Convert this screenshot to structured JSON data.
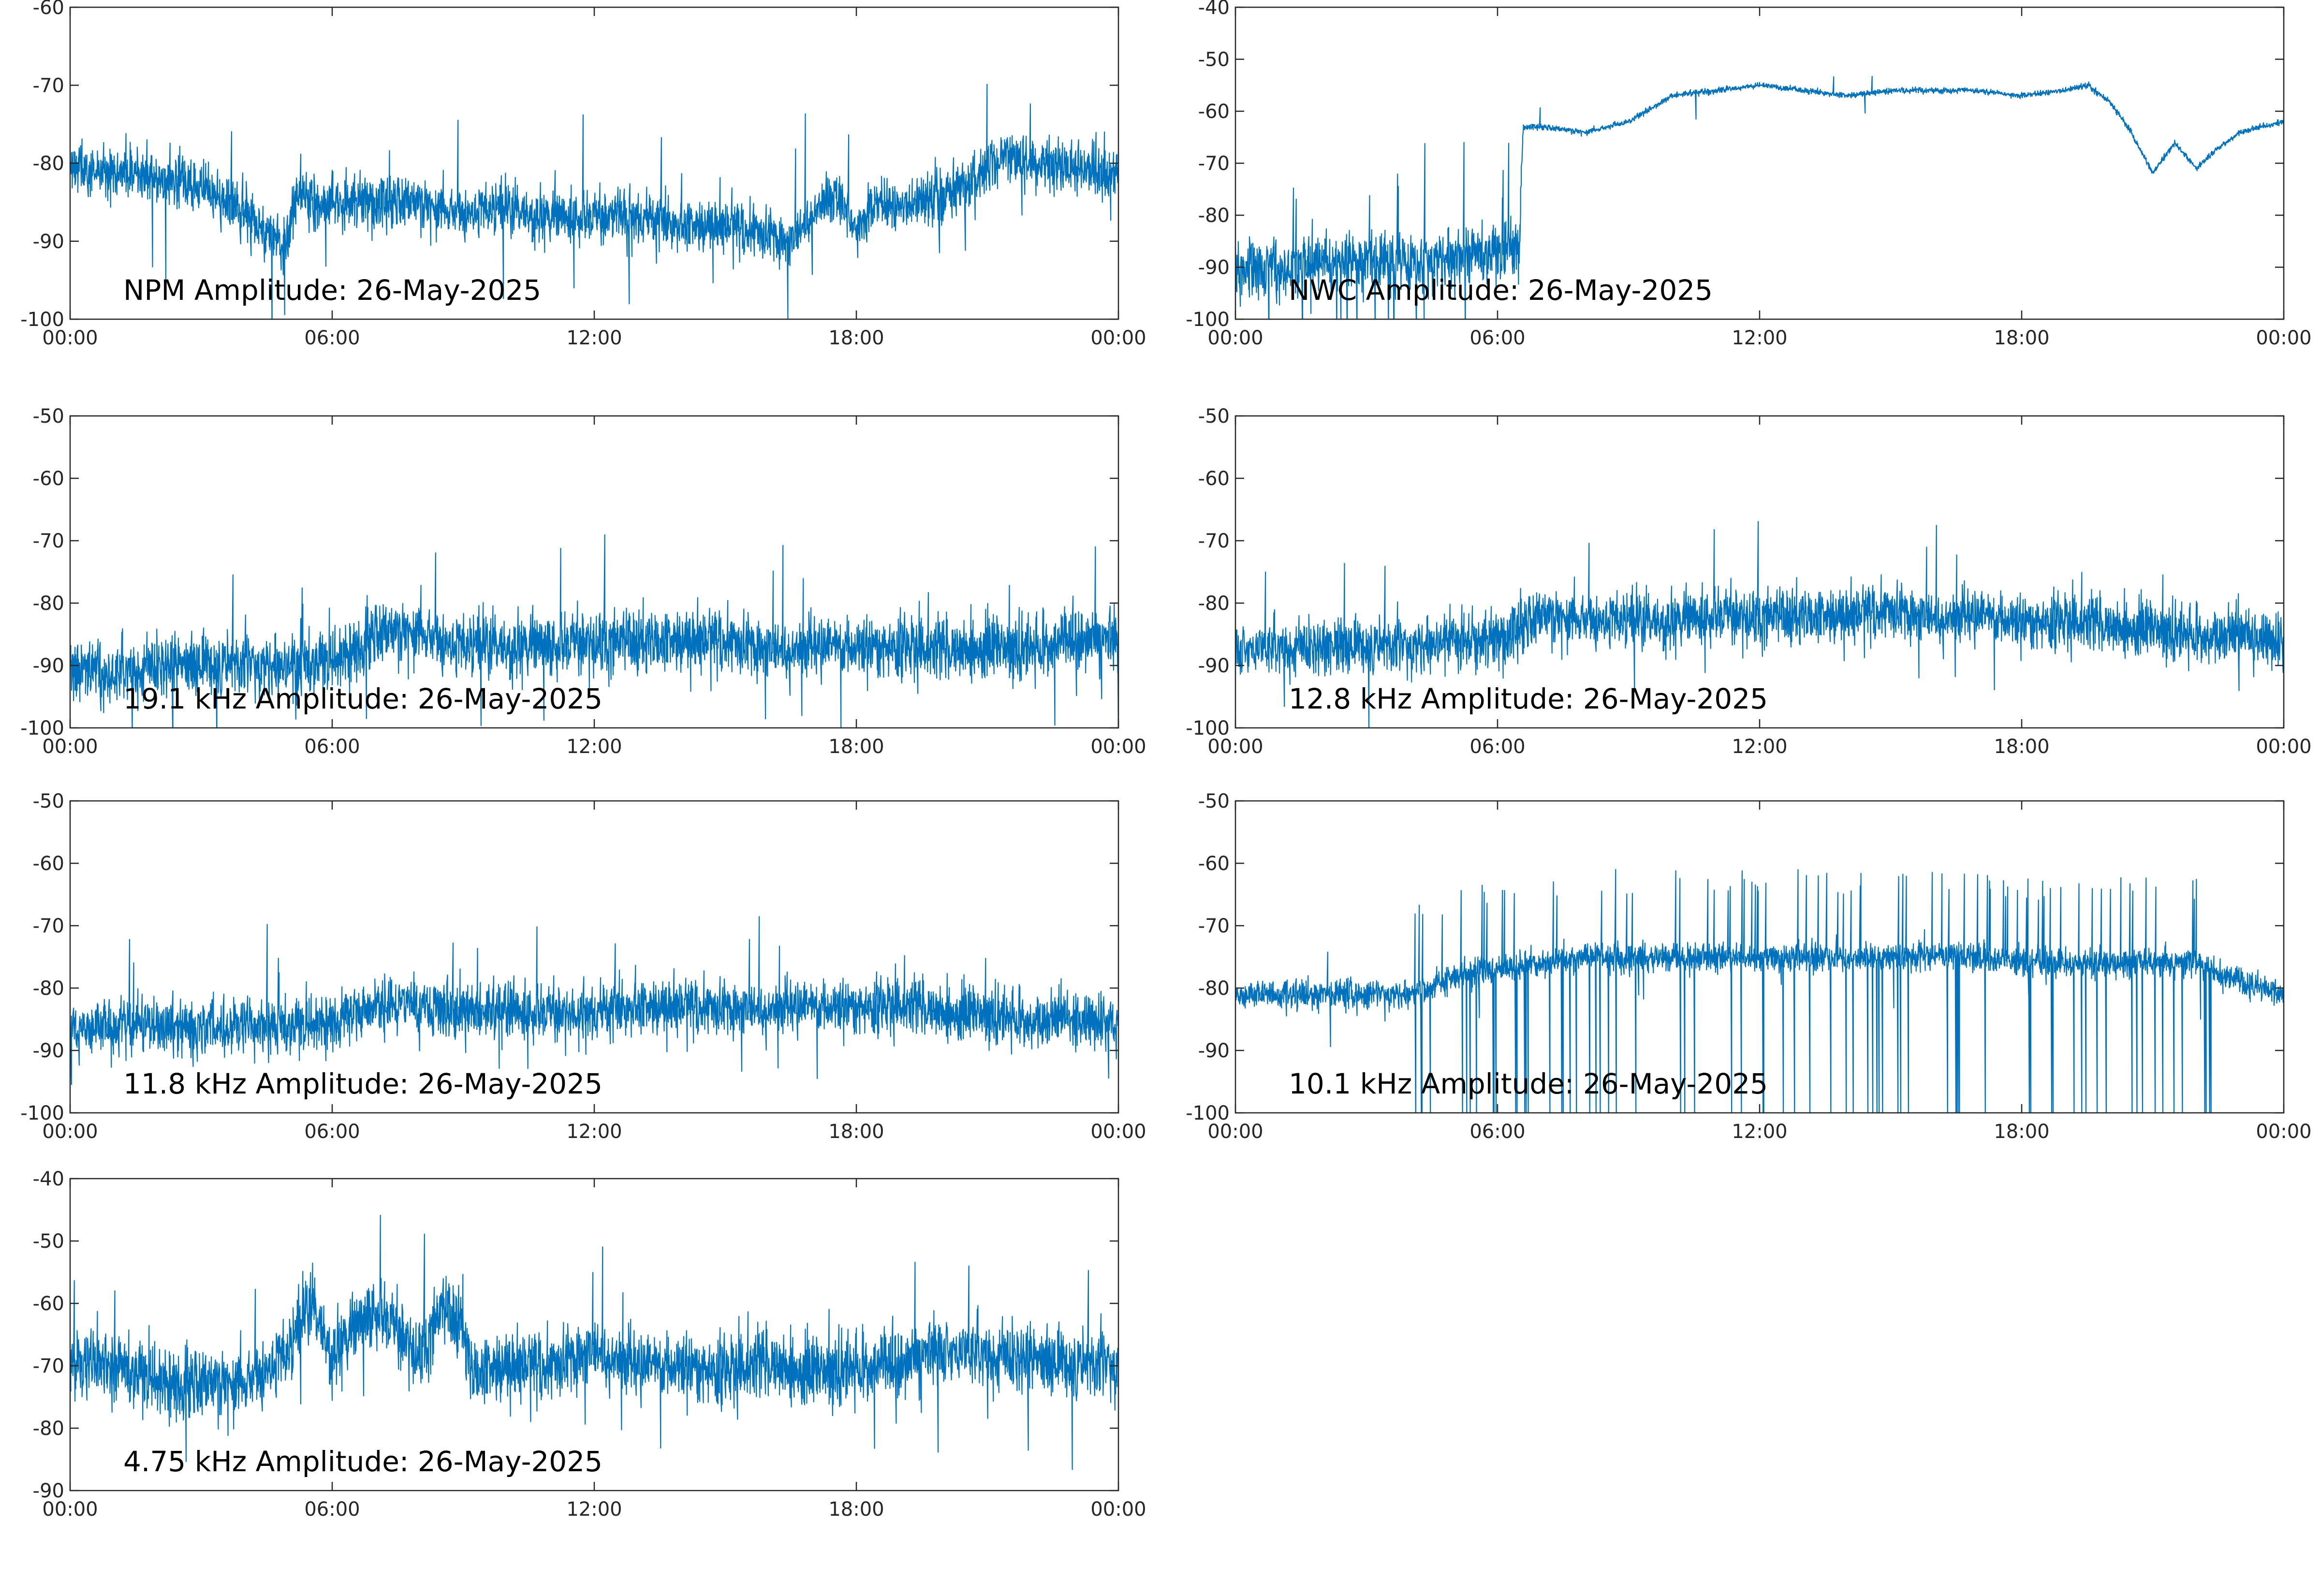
{
  "figure": {
    "line_color": "#0072BD",
    "x_tick_labels": [
      "00:00",
      "06:00",
      "12:00",
      "18:00",
      "00:00"
    ]
  },
  "chart_data": [
    {
      "type": "line",
      "title": "NPM Amplitude: 26-May-2025",
      "xlabel": "",
      "ylabel": "",
      "xlim": [
        "00:00",
        "00:00"
      ],
      "ylim": [
        -100,
        -60
      ],
      "y_ticks": [
        -60,
        -70,
        -80,
        -90,
        -100
      ],
      "grid": false,
      "series": [
        {
          "x": [
            "00:00",
            "01:00",
            "02:00",
            "03:00",
            "04:00",
            "04:30",
            "05:00",
            "05:10",
            "06:00",
            "07:00",
            "08:00",
            "09:00",
            "10:00",
            "11:00",
            "12:00",
            "13:00",
            "14:00",
            "15:00",
            "16:00",
            "16:30",
            "17:00",
            "17:30",
            "18:00",
            "18:30",
            "19:00",
            "20:00",
            "21:00",
            "21:30",
            "22:00",
            "23:00",
            "24:00"
          ],
          "values": [
            -81,
            -81,
            -82,
            -83,
            -86,
            -89,
            -90,
            -84,
            -85,
            -85,
            -85,
            -86,
            -86,
            -87,
            -87,
            -87,
            -88,
            -88,
            -89,
            -90,
            -86,
            -84,
            -88,
            -85,
            -86,
            -84,
            -81,
            -79,
            -80,
            -81,
            -81
          ]
        }
      ]
    },
    {
      "type": "line",
      "title": "NWC Amplitude: 26-May-2025",
      "xlabel": "",
      "ylabel": "",
      "xlim": [
        "00:00",
        "00:00"
      ],
      "ylim": [
        -100,
        -40
      ],
      "y_ticks": [
        -40,
        -50,
        -60,
        -70,
        -80,
        -90,
        -100
      ],
      "grid": false,
      "series": [
        {
          "x": [
            "00:00",
            "01:00",
            "02:00",
            "03:00",
            "04:00",
            "05:00",
            "06:00",
            "06:30",
            "06:35",
            "07:00",
            "08:00",
            "09:00",
            "10:00",
            "11:00",
            "12:00",
            "13:00",
            "14:00",
            "15:00",
            "16:00",
            "17:00",
            "18:00",
            "19:00",
            "19:30",
            "20:00",
            "20:30",
            "21:00",
            "21:30",
            "22:00",
            "22:30",
            "23:00",
            "24:00"
          ],
          "values": [
            -90,
            -90,
            -89,
            -89,
            -89,
            -88,
            -87,
            -87,
            -63,
            -63,
            -64,
            -62,
            -57,
            -56,
            -55,
            -56,
            -57,
            -56,
            -56,
            -56,
            -57,
            -56,
            -55,
            -58,
            -64,
            -72,
            -66,
            -71,
            -67,
            -64,
            -62
          ]
        }
      ]
    },
    {
      "type": "line",
      "title": "19.1 kHz Amplitude: 26-May-2025",
      "xlabel": "",
      "ylabel": "",
      "xlim": [
        "00:00",
        "00:00"
      ],
      "ylim": [
        -100,
        -50
      ],
      "y_ticks": [
        -50,
        -60,
        -70,
        -80,
        -90,
        -100
      ],
      "grid": false,
      "series": [
        {
          "x": [
            "00:00",
            "01:00",
            "02:00",
            "03:00",
            "04:00",
            "05:00",
            "06:00",
            "07:00",
            "08:00",
            "09:00",
            "10:00",
            "11:00",
            "12:00",
            "13:00",
            "14:00",
            "15:00",
            "16:00",
            "17:00",
            "18:00",
            "19:00",
            "20:00",
            "21:00",
            "22:00",
            "23:00",
            "24:00"
          ],
          "values": [
            -91,
            -91,
            -90,
            -90,
            -90,
            -90,
            -89,
            -85,
            -84,
            -87,
            -87,
            -87,
            -86,
            -86,
            -86,
            -86,
            -87,
            -87,
            -87,
            -87,
            -88,
            -87,
            -87,
            -86,
            -86
          ]
        }
      ]
    },
    {
      "type": "line",
      "title": "12.8 kHz Amplitude: 26-May-2025",
      "xlabel": "",
      "ylabel": "",
      "xlim": [
        "00:00",
        "00:00"
      ],
      "ylim": [
        -100,
        -50
      ],
      "y_ticks": [
        -50,
        -60,
        -70,
        -80,
        -90,
        -100
      ],
      "grid": false,
      "series": [
        {
          "x": [
            "00:00",
            "01:00",
            "02:00",
            "03:00",
            "04:00",
            "05:00",
            "06:00",
            "07:00",
            "08:00",
            "09:00",
            "10:00",
            "11:00",
            "12:00",
            "13:00",
            "14:00",
            "15:00",
            "16:00",
            "17:00",
            "18:00",
            "19:00",
            "20:00",
            "21:00",
            "22:00",
            "23:00",
            "24:00"
          ],
          "values": [
            -87,
            -87,
            -87,
            -87,
            -87,
            -86,
            -86,
            -82,
            -82,
            -83,
            -83,
            -82,
            -82,
            -82,
            -82,
            -81,
            -82,
            -82,
            -83,
            -83,
            -84,
            -84,
            -85,
            -85,
            -86
          ]
        }
      ]
    },
    {
      "type": "line",
      "title": "11.8 kHz Amplitude: 26-May-2025",
      "xlabel": "",
      "ylabel": "",
      "xlim": [
        "00:00",
        "00:00"
      ],
      "ylim": [
        -100,
        -50
      ],
      "y_ticks": [
        -50,
        -60,
        -70,
        -80,
        -90,
        -100
      ],
      "grid": false,
      "series": [
        {
          "x": [
            "00:00",
            "01:00",
            "02:00",
            "03:00",
            "04:00",
            "05:00",
            "06:00",
            "07:00",
            "08:00",
            "09:00",
            "10:00",
            "11:00",
            "12:00",
            "13:00",
            "14:00",
            "15:00",
            "16:00",
            "17:00",
            "18:00",
            "19:00",
            "20:00",
            "21:00",
            "22:00",
            "23:00",
            "24:00"
          ],
          "values": [
            -86,
            -86,
            -86,
            -86,
            -86,
            -86,
            -85,
            -83,
            -83,
            -84,
            -84,
            -84,
            -84,
            -83,
            -83,
            -83,
            -83,
            -83,
            -83,
            -83,
            -84,
            -84,
            -85,
            -85,
            -85
          ]
        }
      ]
    },
    {
      "type": "line",
      "title": "10.1 kHz Amplitude: 26-May-2025",
      "xlabel": "",
      "ylabel": "",
      "xlim": [
        "00:00",
        "00:00"
      ],
      "ylim": [
        -100,
        -50
      ],
      "y_ticks": [
        -50,
        -60,
        -70,
        -80,
        -90,
        -100
      ],
      "grid": false,
      "series": [
        {
          "x": [
            "00:00",
            "01:00",
            "02:00",
            "03:00",
            "04:00",
            "05:00",
            "06:00",
            "07:00",
            "08:00",
            "09:00",
            "10:00",
            "11:00",
            "12:00",
            "13:00",
            "14:00",
            "15:00",
            "16:00",
            "17:00",
            "18:00",
            "19:00",
            "20:00",
            "21:00",
            "22:00",
            "23:00",
            "24:00"
          ],
          "values": [
            -81,
            -81,
            -81,
            -81,
            -81,
            -78,
            -77,
            -76,
            -75,
            -75,
            -75,
            -75,
            -75,
            -75,
            -75,
            -75,
            -75,
            -75,
            -76,
            -76,
            -76,
            -76,
            -76,
            -79,
            -81
          ]
        }
      ]
    },
    {
      "type": "line",
      "title": "4.75 kHz Amplitude: 26-May-2025",
      "xlabel": "",
      "ylabel": "",
      "xlim": [
        "00:00",
        "00:00"
      ],
      "ylim": [
        -90,
        -40
      ],
      "y_ticks": [
        -40,
        -50,
        -60,
        -70,
        -80,
        -90
      ],
      "grid": false,
      "series": [
        {
          "x": [
            "00:00",
            "01:00",
            "02:00",
            "03:00",
            "04:00",
            "05:00",
            "05:30",
            "06:00",
            "07:00",
            "08:00",
            "08:30",
            "09:00",
            "09:10",
            "10:00",
            "11:00",
            "12:00",
            "13:00",
            "14:00",
            "15:00",
            "16:00",
            "17:00",
            "18:00",
            "19:00",
            "20:00",
            "21:00",
            "22:00",
            "23:00",
            "24:00"
          ],
          "values": [
            -70,
            -70,
            -72,
            -73,
            -72,
            -68,
            -60,
            -68,
            -61,
            -68,
            -61,
            -63,
            -71,
            -70,
            -70,
            -67,
            -70,
            -70,
            -71,
            -70,
            -71,
            -70,
            -70,
            -67,
            -68,
            -69,
            -70,
            -70
          ]
        }
      ]
    }
  ]
}
